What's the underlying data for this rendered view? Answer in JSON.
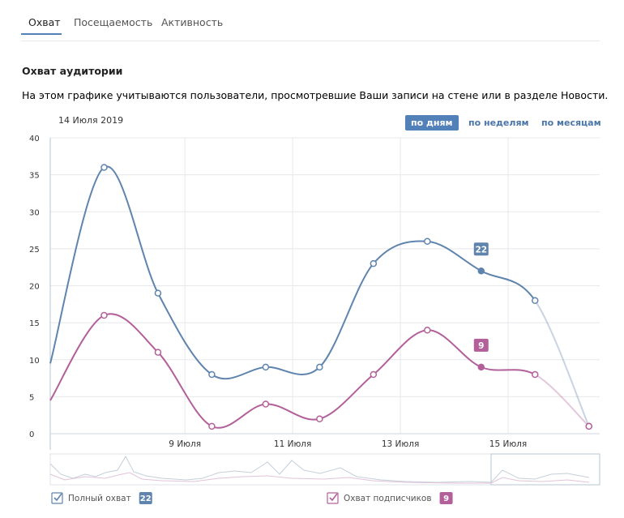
{
  "tabs": [
    "Охват",
    "Посещаемость",
    "Активность"
  ],
  "section_title": "Охват аудитории",
  "description": "На этом графике учитываются пользователи, просмотревшие Ваши записи на стене или в разделе Новости.",
  "date_label": "14 Июля 2019",
  "period_buttons": [
    "по дням",
    "по неделям",
    "по месяцам"
  ],
  "chart_data": {
    "type": "line",
    "x": [
      6.5,
      7.5,
      8.5,
      9.5,
      10.5,
      11.5,
      12.5,
      13.5,
      14.5,
      15.5,
      16.5
    ],
    "series": [
      {
        "name": "Полный охват",
        "color": "#5f84ad",
        "values": [
          9.5,
          36,
          19,
          8,
          9,
          9,
          23,
          26,
          22,
          18,
          1
        ]
      },
      {
        "name": "Охват подписчиков",
        "color": "#b3609a",
        "values": [
          4.5,
          16,
          11,
          1,
          4,
          2,
          8,
          14,
          9,
          8,
          1
        ]
      }
    ],
    "highlight_index": 8,
    "xlim": [
      6.5,
      16.7
    ],
    "xticks": [
      {
        "value": 9,
        "label": "9 Июля"
      },
      {
        "value": 11,
        "label": "11 Июля"
      },
      {
        "value": 13,
        "label": "13 Июля"
      },
      {
        "value": 15,
        "label": "15 Июля"
      }
    ],
    "ylim": [
      0,
      40
    ],
    "yticks": [
      0,
      5,
      10,
      15,
      20,
      25,
      30,
      35,
      40
    ],
    "grid": true
  }
}
